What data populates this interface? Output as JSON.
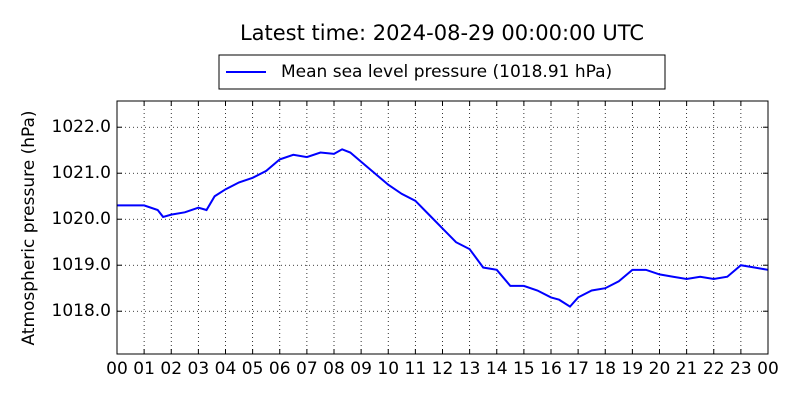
{
  "chart_data": {
    "type": "line",
    "title": "Latest time: 2024-08-29 00:00:00 UTC",
    "y_label": "Atmospheric pressure (hPa)",
    "x": [
      0,
      0.5,
      1,
      1.5,
      1.7,
      2,
      2.5,
      3,
      3.3,
      3.6,
      4,
      4.5,
      5,
      5.5,
      6,
      6.5,
      7,
      7.5,
      8,
      8.3,
      8.6,
      9,
      9.5,
      10,
      10.5,
      11,
      11.5,
      12,
      12.5,
      13,
      13.5,
      14,
      14.5,
      15,
      15.5,
      16,
      16.3,
      16.7,
      17,
      17.5,
      18,
      18.5,
      19,
      19.5,
      20,
      20.5,
      21,
      21.5,
      22,
      22.5,
      23,
      23.5,
      24
    ],
    "series": [
      {
        "name": "Mean sea level pressure (1018.91 hPa)",
        "color": "#0000ff",
        "values": [
          1020.3,
          1020.3,
          1020.3,
          1020.2,
          1020.05,
          1020.1,
          1020.15,
          1020.25,
          1020.2,
          1020.5,
          1020.65,
          1020.8,
          1020.9,
          1021.05,
          1021.3,
          1021.4,
          1021.35,
          1021.45,
          1021.42,
          1021.52,
          1021.45,
          1021.25,
          1021.0,
          1020.75,
          1020.55,
          1020.4,
          1020.1,
          1019.8,
          1019.5,
          1019.35,
          1018.95,
          1018.9,
          1018.55,
          1018.55,
          1018.45,
          1018.3,
          1018.25,
          1018.1,
          1018.3,
          1018.45,
          1018.5,
          1018.65,
          1018.9,
          1018.9,
          1018.8,
          1018.75,
          1018.7,
          1018.75,
          1018.7,
          1018.75,
          1019.0,
          1018.95,
          1018.9
        ]
      }
    ],
    "xlim": [
      0,
      24
    ],
    "xticks": [
      {
        "value": 0,
        "label": "00"
      },
      {
        "value": 1,
        "label": "01"
      },
      {
        "value": 2,
        "label": "02"
      },
      {
        "value": 3,
        "label": "03"
      },
      {
        "value": 4,
        "label": "04"
      },
      {
        "value": 5,
        "label": "05"
      },
      {
        "value": 6,
        "label": "06"
      },
      {
        "value": 7,
        "label": "07"
      },
      {
        "value": 8,
        "label": "08"
      },
      {
        "value": 9,
        "label": "09"
      },
      {
        "value": 10,
        "label": "10"
      },
      {
        "value": 11,
        "label": "11"
      },
      {
        "value": 12,
        "label": "12"
      },
      {
        "value": 13,
        "label": "13"
      },
      {
        "value": 14,
        "label": "14"
      },
      {
        "value": 15,
        "label": "15"
      },
      {
        "value": 16,
        "label": "16"
      },
      {
        "value": 17,
        "label": "17"
      },
      {
        "value": 18,
        "label": "18"
      },
      {
        "value": 19,
        "label": "19"
      },
      {
        "value": 20,
        "label": "20"
      },
      {
        "value": 21,
        "label": "21"
      },
      {
        "value": 22,
        "label": "22"
      },
      {
        "value": 23,
        "label": "23"
      },
      {
        "value": 24,
        "label": "00"
      }
    ],
    "ylim": [
      1017.07,
      1022.57
    ],
    "yticks": [
      {
        "value": 1018,
        "label": "1018.0"
      },
      {
        "value": 1019,
        "label": "1019.0"
      },
      {
        "value": 1020,
        "label": "1020.0"
      },
      {
        "value": 1021,
        "label": "1021.0"
      },
      {
        "value": 1022,
        "label": "1022.0"
      }
    ],
    "grid": true
  }
}
